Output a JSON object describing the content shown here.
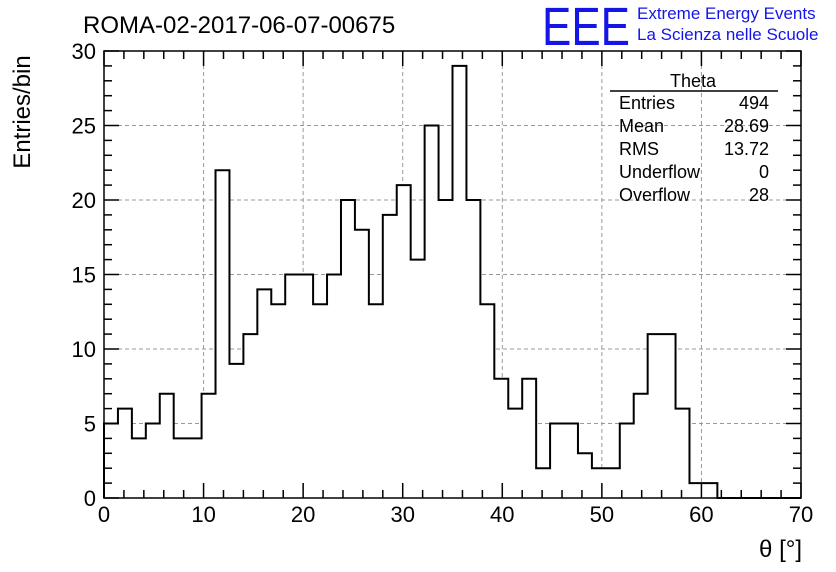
{
  "header": {
    "run_title": "ROMA-02-2017-06-07-00675",
    "logo_letters": "EEE",
    "logo_line1": "Extreme Energy Events",
    "logo_line2": "La Scienza nelle Scuole",
    "logo_color": "#1515e8"
  },
  "stats": {
    "title": "Theta",
    "rows": [
      {
        "label": "Entries",
        "value": "494"
      },
      {
        "label": "Mean",
        "value": "28.69"
      },
      {
        "label": "RMS",
        "value": "13.72"
      },
      {
        "label": "Underflow",
        "value": "0"
      },
      {
        "label": "Overflow",
        "value": "28"
      }
    ]
  },
  "chart_data": {
    "type": "bar",
    "histogram": true,
    "title": "",
    "xlabel": "θ [°]",
    "ylabel": "Entries/bin",
    "xlim": [
      0,
      70
    ],
    "ylim": [
      0,
      30
    ],
    "grid": true,
    "legend": "none",
    "xticks": [
      0,
      10,
      20,
      30,
      40,
      50,
      60,
      70
    ],
    "yticks": [
      0,
      5,
      10,
      15,
      20,
      25,
      30
    ],
    "bin_edges_start": 0,
    "bin_width": 1.4,
    "values": [
      5,
      6,
      4,
      5,
      7,
      4,
      4,
      7,
      22,
      9,
      11,
      14,
      13,
      15,
      15,
      13,
      15,
      20,
      18,
      13,
      19,
      21,
      16,
      25,
      20,
      29,
      20,
      13,
      8,
      6,
      8,
      2,
      5,
      5,
      3,
      2,
      2,
      5,
      7,
      11,
      11,
      6,
      1,
      1,
      0,
      0,
      0,
      0,
      0,
      0
    ]
  }
}
